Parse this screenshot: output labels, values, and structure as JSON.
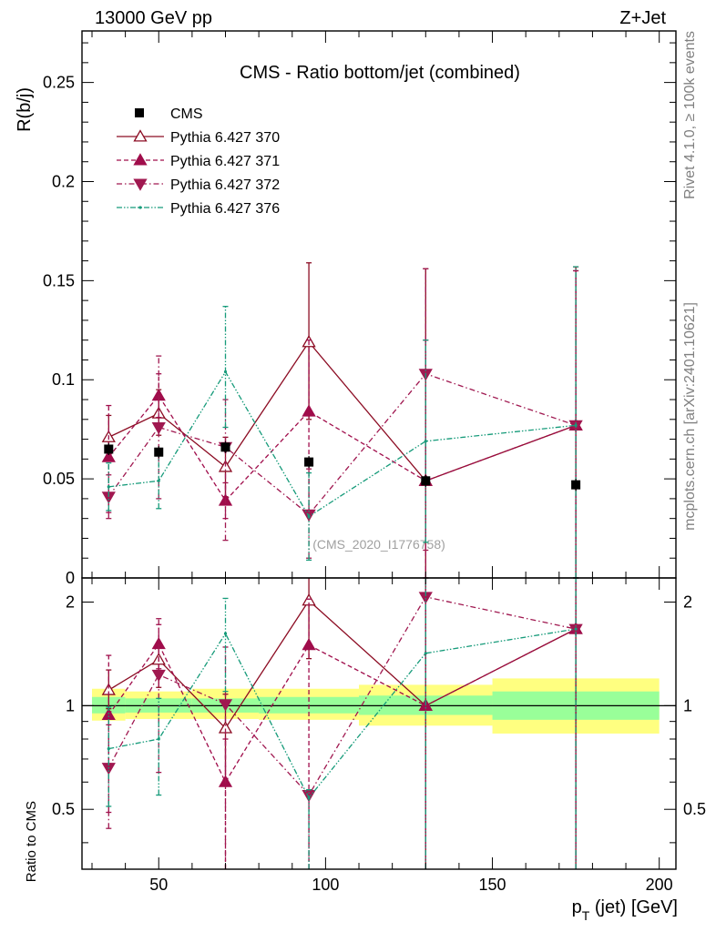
{
  "header": {
    "energy_label": "13000 GeV pp",
    "process_label": "Z+Jet"
  },
  "side_labels": {
    "rivet": "Rivet 4.1.0, ≥ 100k events",
    "mcplots": "mcplots.cern.ch [arXiv:2401.10621]"
  },
  "chart_data": {
    "type": "line",
    "title": "CMS - Ratio bottom/jet (combined)",
    "watermark": "(CMS_2020_I1776758)",
    "xlabel_main": "p",
    "xlabel_sub": "T",
    "xlabel_rest": " (jet) [GeV]",
    "ylabel": "R(b/j)",
    "ratio_ylabel": "Ratio to CMS",
    "xlim": [
      27,
      205
    ],
    "ylim": [
      0,
      0.276
    ],
    "ratio_ylim": [
      0.335,
      2.35
    ],
    "x_ticks": [
      50,
      100,
      150,
      200
    ],
    "x_tick_labels": [
      "50",
      "100",
      "150",
      "200"
    ],
    "y_ticks": [
      0,
      0.05,
      0.1,
      0.15,
      0.2,
      0.25
    ],
    "y_tick_labels": [
      "0",
      "0.05",
      "0.1",
      "0.15",
      "0.2",
      "0.25"
    ],
    "ratio_ticks": [
      0.5,
      1,
      2
    ],
    "ratio_tick_labels": [
      "0.5",
      "1",
      "2"
    ],
    "data_name": "CMS",
    "data": {
      "x": [
        35,
        50,
        70,
        95,
        130,
        175
      ],
      "y": [
        0.065,
        0.0635,
        0.066,
        0.0585,
        0.049,
        0.047
      ],
      "err": [
        0.003,
        0.003,
        0.003,
        0.003,
        0.003,
        0.003
      ]
    },
    "bands": {
      "edges": [
        30,
        40,
        60,
        80,
        110,
        150,
        200
      ],
      "inner": [
        [
          0.95,
          1.06
        ],
        [
          0.955,
          1.05
        ],
        [
          0.955,
          1.05
        ],
        [
          0.95,
          1.06
        ],
        [
          0.94,
          1.07
        ],
        [
          0.91,
          1.1
        ]
      ],
      "outer": [
        [
          0.905,
          1.12
        ],
        [
          0.915,
          1.1
        ],
        [
          0.915,
          1.12
        ],
        [
          0.91,
          1.12
        ],
        [
          0.875,
          1.15
        ],
        [
          0.83,
          1.2
        ]
      ]
    },
    "series": [
      {
        "name": "Pythia 6.427 370",
        "color": "#8c0c23",
        "marker": "triangle-up-open",
        "dash": "",
        "x": [
          35,
          50,
          70,
          95,
          130,
          175
        ],
        "y": [
          0.071,
          0.083,
          0.056,
          0.119,
          0.049,
          0.077
        ],
        "lo": [
          0.06,
          0.072,
          0.041,
          0.08,
          0.0,
          0.0
        ],
        "hi": [
          0.082,
          0.095,
          0.071,
          0.159,
          0.156,
          0.157
        ],
        "ratio": [
          1.11,
          1.36,
          0.86,
          2.02,
          1.0,
          1.67
        ],
        "ratio_lo": [
          0.98,
          1.13,
          0.61,
          1.37,
          0.0,
          0.0
        ],
        "ratio_hi": [
          1.27,
          1.5,
          1.08,
          2.72,
          3.18,
          3.34
        ]
      },
      {
        "name": "Pythia 6.427 371",
        "color": "#a00d4b",
        "marker": "triangle-up-filled",
        "dash": "5,3",
        "x": [
          35,
          50,
          70,
          95,
          130,
          175
        ],
        "y": [
          0.061,
          0.092,
          0.039,
          0.084,
          0.049,
          0.077
        ],
        "lo": [
          0.033,
          0.081,
          0.03,
          0.033,
          0.0,
          0.0
        ],
        "hi": [
          0.087,
          0.103,
          0.048,
          0.12,
          0.12,
          0.155
        ],
        "ratio": [
          0.94,
          1.51,
          0.6,
          1.5,
          1.0,
          1.67
        ],
        "ratio_lo": [
          0.49,
          1.28,
          0.0,
          0.0,
          0.0,
          0.0
        ],
        "ratio_hi": [
          1.4,
          1.72,
          0.8,
          2.04,
          2.43,
          3.3
        ]
      },
      {
        "name": "Pythia 6.427 372",
        "color": "#a01850",
        "marker": "triangle-down-filled",
        "dash": "6,3,1.5,3",
        "x": [
          35,
          50,
          70,
          95,
          130,
          175
        ],
        "y": [
          0.041,
          0.076,
          0.066,
          0.032,
          0.103,
          0.077
        ],
        "lo": [
          0.03,
          0.04,
          0.019,
          0.01,
          0.014,
          0.0
        ],
        "hi": [
          0.052,
          0.112,
          0.09,
          0.055,
          0.156,
          0.155
        ],
        "ratio": [
          0.66,
          1.23,
          1.01,
          0.55,
          2.07,
          1.67
        ],
        "ratio_lo": [
          0.44,
          0.64,
          0.0,
          0.0,
          0.0,
          0.0
        ],
        "ratio_hi": [
          0.88,
          1.79,
          1.48,
          0.56,
          3.18,
          3.3
        ]
      },
      {
        "name": "Pythia 6.427 376",
        "color": "#169b7a",
        "marker": "dot",
        "dash": "6,2,1.5,2,1.5,2",
        "x": [
          35,
          50,
          70,
          95,
          130,
          175
        ],
        "y": [
          0.046,
          0.049,
          0.104,
          0.031,
          0.069,
          0.077
        ],
        "lo": [
          0.034,
          0.035,
          0.076,
          0.009,
          0.018,
          0.0
        ],
        "hi": [
          0.058,
          0.063,
          0.137,
          0.053,
          0.12,
          0.157
        ],
        "ratio": [
          0.75,
          0.8,
          1.62,
          0.54,
          1.42,
          1.67
        ],
        "ratio_lo": [
          0.51,
          0.55,
          1.1,
          0.0,
          0.0,
          0.0
        ],
        "ratio_hi": [
          0.99,
          1.05,
          2.05,
          0.57,
          2.43,
          3.34
        ]
      }
    ]
  }
}
